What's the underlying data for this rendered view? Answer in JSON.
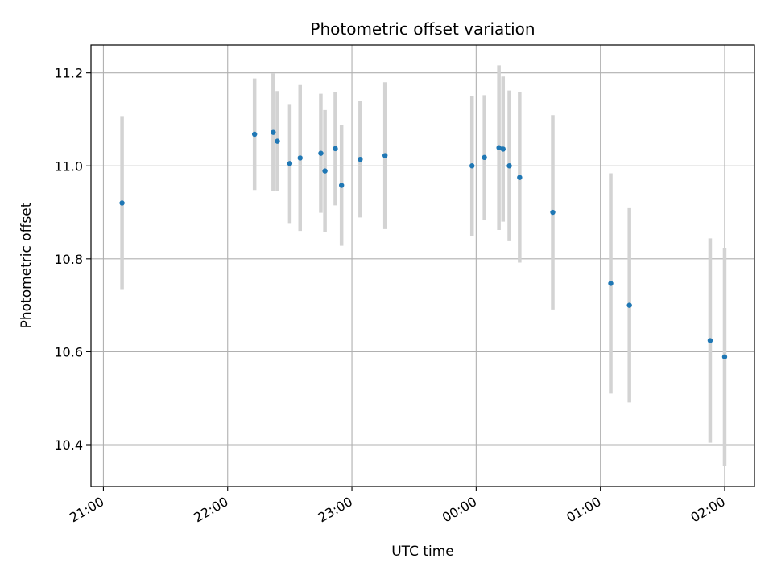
{
  "chart_data": {
    "type": "scatter",
    "title": "Photometric offset variation",
    "xlabel": "UTC time",
    "ylabel": "Photometric offset",
    "x_tick_labels": [
      "21:00",
      "22:00",
      "23:00",
      "00:00",
      "01:00",
      "02:00"
    ],
    "x_tick_hours": [
      0,
      1,
      2,
      3,
      4,
      5
    ],
    "y_tick_labels": [
      "10.4",
      "10.6",
      "10.8",
      "11.0",
      "11.2"
    ],
    "y_tick_values": [
      10.4,
      10.6,
      10.8,
      11.0,
      11.2
    ],
    "xlim_hours": [
      -0.1,
      5.24
    ],
    "ylim": [
      10.31,
      11.26
    ],
    "grid": true,
    "colors": {
      "point": "#1f77b4",
      "errorbar": "#d3d3d3",
      "grid": "#b0b0b0"
    },
    "points": [
      {
        "t": "21:09",
        "y": 10.92,
        "err": 0.187
      },
      {
        "t": "22:13",
        "y": 11.068,
        "err": 0.12
      },
      {
        "t": "22:22",
        "y": 11.072,
        "err": 0.127
      },
      {
        "t": "22:24",
        "y": 11.053,
        "err": 0.108
      },
      {
        "t": "22:30",
        "y": 11.005,
        "err": 0.128
      },
      {
        "t": "22:35",
        "y": 11.017,
        "err": 0.157
      },
      {
        "t": "22:45",
        "y": 11.027,
        "err": 0.128
      },
      {
        "t": "22:47",
        "y": 10.989,
        "err": 0.131
      },
      {
        "t": "22:52",
        "y": 11.037,
        "err": 0.122
      },
      {
        "t": "22:55",
        "y": 10.958,
        "err": 0.13
      },
      {
        "t": "23:04",
        "y": 11.014,
        "err": 0.125
      },
      {
        "t": "23:16",
        "y": 11.022,
        "err": 0.158
      },
      {
        "t": "23:58",
        "y": 11.0,
        "err": 0.151
      },
      {
        "t": "00:04",
        "y": 11.018,
        "err": 0.134
      },
      {
        "t": "00:11",
        "y": 11.039,
        "err": 0.177
      },
      {
        "t": "00:13",
        "y": 11.036,
        "err": 0.156
      },
      {
        "t": "00:16",
        "y": 11.0,
        "err": 0.162
      },
      {
        "t": "00:21",
        "y": 10.975,
        "err": 0.183
      },
      {
        "t": "00:37",
        "y": 10.9,
        "err": 0.209
      },
      {
        "t": "01:05",
        "y": 10.747,
        "err": 0.237
      },
      {
        "t": "01:14",
        "y": 10.7,
        "err": 0.209
      },
      {
        "t": "01:53",
        "y": 10.624,
        "err": 0.22
      },
      {
        "t": "02:00",
        "y": 10.589,
        "err": 0.234
      }
    ]
  }
}
